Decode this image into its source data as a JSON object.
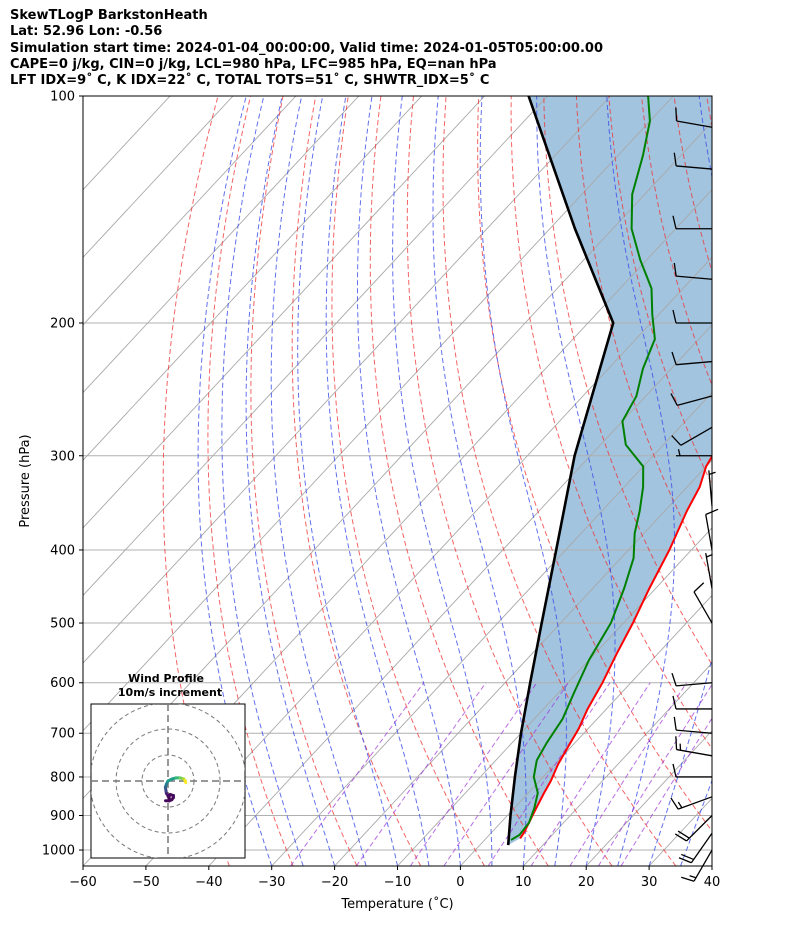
{
  "header": {
    "line1": "SkewTLogP BarkstonHeath",
    "line2": "Lat: 52.96   Lon: -0.56",
    "line3": "Simulation start time: 2024-01-04_00:00:00, Valid time: 2024-01-05T05:00:00.00",
    "line4": "CAPE=0 j/kg, CIN=0 j/kg, LCL=980 hPa, LFC=985 hPa, EQ=nan hPa",
    "line5": "LFT IDX=9˚ C, K IDX=22˚ C, TOTAL TOTS=51˚ C, SHWTR_IDX=5˚ C"
  },
  "chart_data": {
    "type": "line",
    "subtype": "skew-t log-p",
    "xlabel": "Temperature (˚C)",
    "ylabel": "Pressure (hPa)",
    "xlim": [
      -60,
      40
    ],
    "ylim": [
      1050,
      100
    ],
    "yscale": "log",
    "x_ticks": [
      -60,
      -50,
      -40,
      -30,
      -20,
      -10,
      0,
      10,
      20,
      30,
      40
    ],
    "x_tick_labels": [
      "−60",
      "−50",
      "−40",
      "−30",
      "−20",
      "−10",
      "0",
      "10",
      "20",
      "30",
      "40"
    ],
    "y_ticks": [
      1000,
      900,
      800,
      700,
      600,
      500,
      400,
      300,
      200,
      100
    ],
    "y_tick_labels": [
      "1000",
      "900",
      "800",
      "700",
      "600",
      "500",
      "400",
      "300",
      "200",
      "100"
    ],
    "grid": true,
    "series": [
      {
        "color": "#ff0000",
        "points": [
          [
            5.4,
            965
          ],
          [
            5.2,
            950
          ],
          [
            4.5,
            920
          ],
          [
            3.5,
            880
          ],
          [
            2.5,
            840
          ],
          [
            1.8,
            810
          ],
          [
            0.5,
            770
          ],
          [
            -0.5,
            730
          ],
          [
            -1.5,
            690
          ],
          [
            -3.0,
            650
          ],
          [
            -4.5,
            600
          ],
          [
            -6.5,
            550
          ],
          [
            -8.5,
            500
          ],
          [
            -11,
            450
          ],
          [
            -13.5,
            400
          ],
          [
            -16.5,
            355
          ],
          [
            -18,
            330
          ],
          [
            -20,
            310
          ],
          [
            -21.5,
            285
          ],
          [
            -24.5,
            260
          ],
          [
            -27.5,
            235
          ],
          [
            -31,
            210
          ],
          [
            -34.5,
            190
          ],
          [
            -37.5,
            175
          ],
          [
            -39.5,
            160
          ],
          [
            -42.5,
            140
          ],
          [
            -45,
            125
          ],
          [
            -46.5,
            110
          ],
          [
            -47.5,
            103
          ],
          [
            -48,
            100
          ]
        ]
      },
      {
        "color": "#008000",
        "points": [
          [
            4.2,
            970
          ],
          [
            4.8,
            955
          ],
          [
            4.5,
            920
          ],
          [
            3.2,
            880
          ],
          [
            1.5,
            840
          ],
          [
            -1.5,
            800
          ],
          [
            -3.5,
            760
          ],
          [
            -4.5,
            720
          ],
          [
            -5.5,
            670
          ],
          [
            -7.5,
            620
          ],
          [
            -10,
            560
          ],
          [
            -12,
            500
          ],
          [
            -15,
            450
          ],
          [
            -18,
            410
          ],
          [
            -21.5,
            380
          ],
          [
            -24,
            355
          ],
          [
            -27,
            330
          ],
          [
            -30,
            310
          ],
          [
            -36,
            290
          ],
          [
            -40,
            270
          ],
          [
            -41.5,
            250
          ],
          [
            -44.5,
            230
          ],
          [
            -47,
            210
          ],
          [
            -51,
            195
          ],
          [
            -55,
            180
          ],
          [
            -61,
            165
          ],
          [
            -67,
            150
          ],
          [
            -72,
            135
          ],
          [
            -76,
            120
          ],
          [
            -80,
            108
          ],
          [
            -84,
            100
          ]
        ]
      },
      {
        "color": "#000000",
        "points": [
          [
            4.5,
            985
          ],
          [
            0.5,
            900
          ],
          [
            -4.5,
            800
          ],
          [
            -10,
            700
          ],
          [
            -16,
            600
          ],
          [
            -23,
            500
          ],
          [
            -31.5,
            400
          ],
          [
            -42.5,
            300
          ],
          [
            -56,
            200
          ],
          [
            -76,
            150
          ],
          [
            -103,
            100
          ]
        ]
      }
    ],
    "wind_barbs": [
      {
        "pressure": 1000,
        "speed_kt": 15,
        "direction_deg": 210
      },
      {
        "pressure": 950,
        "speed_kt": 20,
        "direction_deg": 215
      },
      {
        "pressure": 900,
        "speed_kt": 20,
        "direction_deg": 225
      },
      {
        "pressure": 850,
        "speed_kt": 15,
        "direction_deg": 250
      },
      {
        "pressure": 800,
        "speed_kt": 10,
        "direction_deg": 270
      },
      {
        "pressure": 750,
        "speed_kt": 15,
        "direction_deg": 280
      },
      {
        "pressure": 700,
        "speed_kt": 10,
        "direction_deg": 275
      },
      {
        "pressure": 650,
        "speed_kt": 10,
        "direction_deg": 270
      },
      {
        "pressure": 600,
        "speed_kt": 10,
        "direction_deg": 265
      },
      {
        "pressure": 500,
        "speed_kt": 10,
        "direction_deg": 330
      },
      {
        "pressure": 450,
        "speed_kt": 5,
        "direction_deg": 350
      },
      {
        "pressure": 400,
        "speed_kt": 10,
        "direction_deg": 350
      },
      {
        "pressure": 350,
        "speed_kt": 5,
        "direction_deg": 355
      },
      {
        "pressure": 300,
        "speed_kt": 5,
        "direction_deg": 270
      },
      {
        "pressure": 275,
        "speed_kt": 10,
        "direction_deg": 240
      },
      {
        "pressure": 250,
        "speed_kt": 10,
        "direction_deg": 255
      },
      {
        "pressure": 225,
        "speed_kt": 10,
        "direction_deg": 265
      },
      {
        "pressure": 200,
        "speed_kt": 10,
        "direction_deg": 270
      },
      {
        "pressure": 175,
        "speed_kt": 10,
        "direction_deg": 275
      },
      {
        "pressure": 150,
        "speed_kt": 10,
        "direction_deg": 270
      },
      {
        "pressure": 125,
        "speed_kt": 10,
        "direction_deg": 275
      },
      {
        "pressure": 110,
        "speed_kt": 10,
        "direction_deg": 280
      }
    ],
    "inset": {
      "title": "Wind Profile",
      "subtitle": "10m/s increment",
      "hodograph_uv": [
        [
          0.3,
          -3.8
        ],
        [
          0.2,
          -3.0
        ],
        [
          -0.3,
          -2.4
        ],
        [
          -0.4,
          -1.8
        ],
        [
          -0.5,
          -1.2
        ],
        [
          -0.3,
          -0.6
        ],
        [
          0.0,
          0.0
        ],
        [
          0.8,
          0.4
        ],
        [
          1.5,
          0.6
        ],
        [
          2.3,
          0.6
        ],
        [
          3.0,
          0.4
        ],
        [
          3.3,
          0.1
        ],
        [
          3.4,
          -0.3
        ]
      ],
      "hodograph_uv_end": [
        [
          0.3,
          -3.8
        ],
        [
          1.0,
          -3.8
        ],
        [
          1.5,
          -3.6
        ],
        [
          1.8,
          -3.2
        ],
        [
          1.8,
          -2.8
        ],
        [
          1.2,
          -2.6
        ],
        [
          0.8,
          -3.0
        ]
      ],
      "rings": [
        10,
        20,
        30
      ]
    }
  }
}
